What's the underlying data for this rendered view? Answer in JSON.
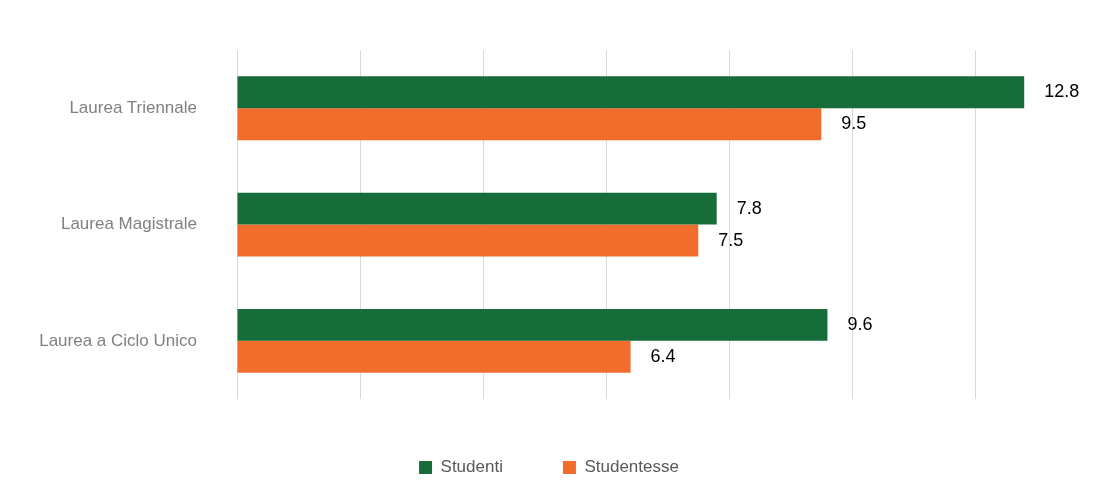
{
  "chart_data": {
    "type": "bar",
    "orientation": "horizontal",
    "categories": [
      "Laurea Triennale",
      "Laurea Magistrale",
      "Laurea a Ciclo Unico"
    ],
    "series": [
      {
        "name": "Studenti",
        "color": "#176d39",
        "values": [
          12.8,
          7.8,
          9.6
        ]
      },
      {
        "name": "Studentesse",
        "color": "#f26d2b",
        "values": [
          9.5,
          7.5,
          6.4
        ]
      }
    ],
    "xticks": [
      {
        "value": 0,
        "label": null
      },
      {
        "value": 2,
        "label": null
      },
      {
        "value": 4,
        "label": null
      },
      {
        "value": 6,
        "label": null
      },
      {
        "value": 8,
        "label": null
      },
      {
        "value": 10,
        "label": null
      },
      {
        "value": 12,
        "label": null
      }
    ],
    "tick_labels": "y",
    "grid": "x",
    "data_labels": true,
    "legend": "bottom"
  }
}
